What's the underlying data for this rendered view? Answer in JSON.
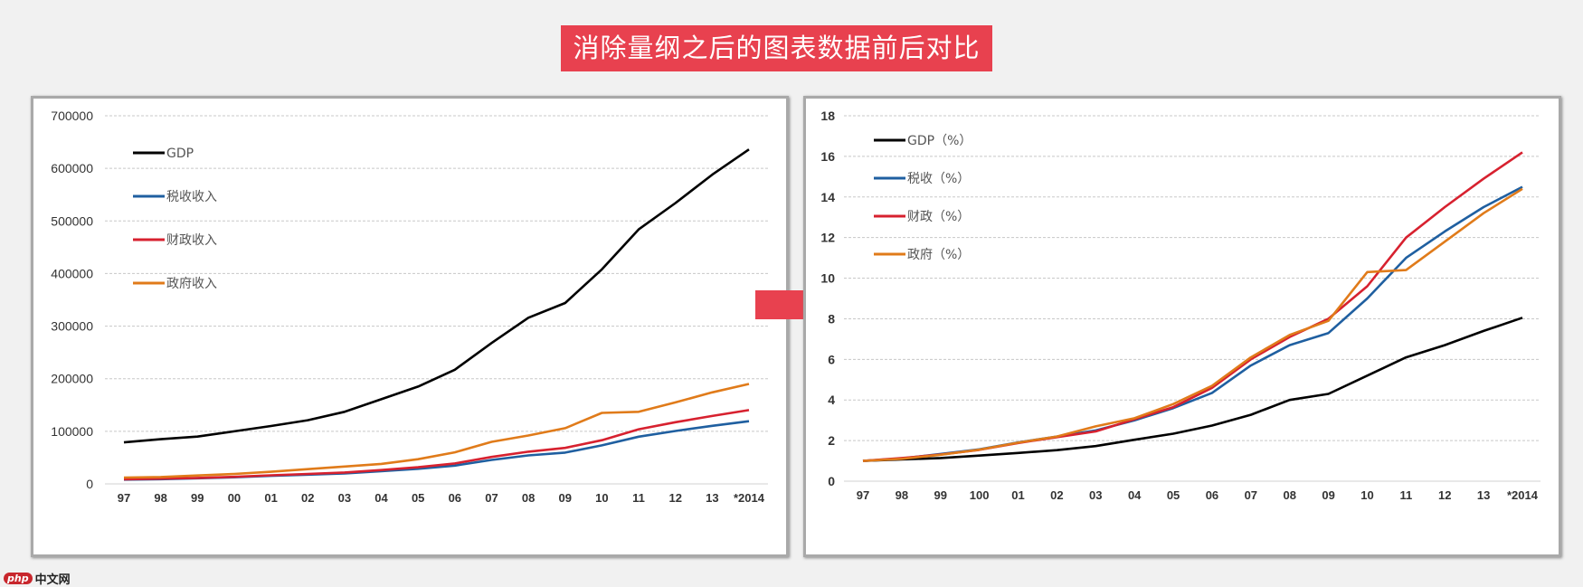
{
  "title": "消除量纲之后的图表数据前后对比",
  "logo": {
    "mark": "php",
    "text": "中文网"
  },
  "colors": {
    "accent": "#e8414f",
    "gdp": "#000000",
    "tax": "#1f5fa0",
    "fiscal": "#d7212f",
    "gov": "#e07b1a"
  },
  "chart_data": [
    {
      "type": "line",
      "categories": [
        "97",
        "98",
        "99",
        "00",
        "01",
        "02",
        "03",
        "04",
        "05",
        "06",
        "07",
        "08",
        "09",
        "10",
        "11",
        "12",
        "13",
        "*2014"
      ],
      "yticks": [
        "0",
        "100000",
        "200000",
        "300000",
        "400000",
        "500000",
        "600000",
        "700000"
      ],
      "ylim": [
        0,
        700000
      ],
      "grid": true,
      "legend": "top-left",
      "series": [
        {
          "name": "GDP",
          "color": "#000000",
          "values": [
            79000,
            85000,
            90000,
            100000,
            110000,
            121000,
            137000,
            161000,
            185000,
            217000,
            268000,
            316000,
            344000,
            408000,
            484000,
            534000,
            588000,
            636000
          ]
        },
        {
          "name": "税收收入",
          "color": "#1f5fa0",
          "values": [
            8000,
            9000,
            10700,
            12600,
            15300,
            17600,
            20000,
            24200,
            28800,
            34800,
            45600,
            54200,
            59500,
            73200,
            89700,
            100600,
            110500,
            119200
          ]
        },
        {
          "name": "财政收入",
          "color": "#d7212f",
          "values": [
            8700,
            9900,
            11400,
            13400,
            16400,
            18900,
            21700,
            26400,
            31600,
            38800,
            51300,
            61300,
            68500,
            83100,
            103900,
            117300,
            129200,
            140400
          ]
        },
        {
          "name": "政府收入",
          "color": "#e07b1a",
          "values": [
            12000,
            13000,
            16000,
            19000,
            23000,
            28000,
            33000,
            38000,
            47000,
            60000,
            80000,
            92000,
            106000,
            135000,
            137000,
            155000,
            174000,
            190000
          ]
        }
      ]
    },
    {
      "type": "line",
      "categories": [
        "97",
        "98",
        "99",
        "100",
        "01",
        "02",
        "03",
        "04",
        "05",
        "06",
        "07",
        "08",
        "09",
        "10",
        "11",
        "12",
        "13",
        "*2014"
      ],
      "yticks": [
        "0",
        "2",
        "4",
        "6",
        "8",
        "10",
        "12",
        "14",
        "16",
        "18"
      ],
      "ylim": [
        0,
        18
      ],
      "grid": true,
      "legend": "top-left",
      "series": [
        {
          "name": "GDP（%）",
          "color": "#000000",
          "values": [
            1,
            1.07,
            1.14,
            1.26,
            1.39,
            1.53,
            1.73,
            2.04,
            2.34,
            2.74,
            3.27,
            4.0,
            4.3,
            5.2,
            6.1,
            6.7,
            7.4,
            8.05
          ]
        },
        {
          "name": "税收（%）",
          "color": "#1f5fa0",
          "values": [
            1,
            1.12,
            1.34,
            1.57,
            1.91,
            2.2,
            2.5,
            3.0,
            3.6,
            4.35,
            5.7,
            6.7,
            7.3,
            9.0,
            11.0,
            12.3,
            13.5,
            14.5
          ]
        },
        {
          "name": "财政（%）",
          "color": "#d7212f",
          "values": [
            1,
            1.14,
            1.31,
            1.54,
            1.88,
            2.17,
            2.45,
            3.05,
            3.65,
            4.6,
            6.0,
            7.1,
            8.0,
            9.6,
            12.0,
            13.5,
            14.9,
            16.2
          ]
        },
        {
          "name": "政府（%）",
          "color": "#e07b1a",
          "values": [
            1,
            1.1,
            1.3,
            1.55,
            1.9,
            2.2,
            2.7,
            3.1,
            3.8,
            4.7,
            6.1,
            7.2,
            7.9,
            10.3,
            10.4,
            11.8,
            13.2,
            14.4
          ]
        }
      ]
    }
  ]
}
